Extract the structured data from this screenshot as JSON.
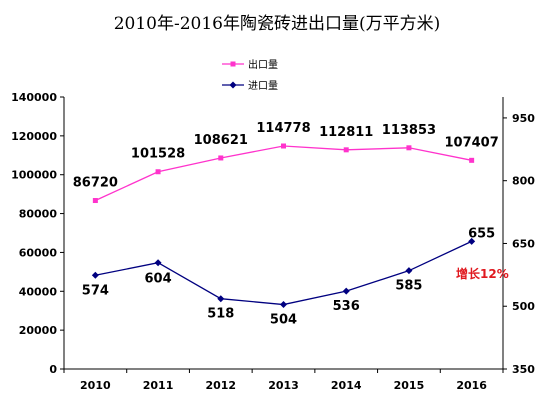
{
  "chart_data": {
    "type": "line",
    "title": "2010年-2016年陶瓷砖进出口量(万平方米)",
    "categories": [
      "2010",
      "2011",
      "2012",
      "2013",
      "2014",
      "2015",
      "2016"
    ],
    "series": [
      {
        "name": "出口量",
        "axis": "left",
        "color": "#ff33cc",
        "values": [
          86720,
          101528,
          108621,
          114778,
          112811,
          113853,
          107407
        ]
      },
      {
        "name": "进口量",
        "axis": "right",
        "color": "#000080",
        "values": [
          574,
          604,
          518,
          504,
          536,
          585,
          655
        ]
      }
    ],
    "y_left": {
      "range": [
        0,
        140000
      ],
      "ticks": [
        0,
        20000,
        40000,
        60000,
        80000,
        100000,
        120000,
        140000
      ]
    },
    "y_right": {
      "range": [
        350,
        1000
      ],
      "ticks": [
        350,
        500,
        650,
        800,
        950
      ]
    },
    "legend_position": "top-left",
    "annotation": "增长12%",
    "grid": false
  }
}
